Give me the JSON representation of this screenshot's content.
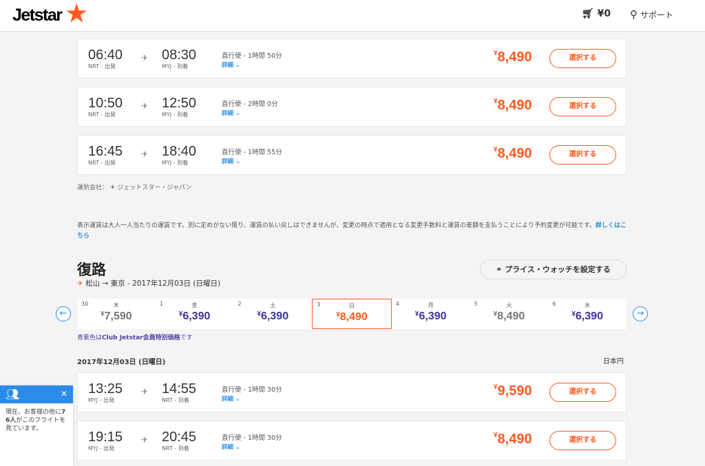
{
  "header": {
    "logo": "Jetstar",
    "cart_total": "¥0",
    "support": "サポート"
  },
  "outbound_flights": [
    {
      "dep": "06:40",
      "dep_ap": "NRT - 出発",
      "arr": "08:30",
      "arr_ap": "MYJ - 到着",
      "dur": "直行便 - 1時間 50分",
      "details": "詳細 ⌄",
      "price": "8,490",
      "select": "選択する"
    },
    {
      "dep": "10:50",
      "dep_ap": "NRT - 出発",
      "arr": "12:50",
      "arr_ap": "MYJ - 到着",
      "dur": "直行便 - 2時間 0分",
      "details": "詳細 ⌄",
      "price": "8,490",
      "select": "選択する"
    },
    {
      "dep": "16:45",
      "dep_ap": "NRT - 出発",
      "arr": "18:40",
      "arr_ap": "MYJ - 到着",
      "dur": "直行便 - 1時間 55分",
      "details": "詳細 ⌄",
      "price": "8,490",
      "select": "選択する"
    }
  ],
  "operator": "運航会社： ✈ ジェットスター・ジャパン",
  "fare_note": "表示運賃は大人一人当たりの運賃です。別に定めがない限り、運賃の払い戻しはできませんが、変更の時点で適用となる変更手数料と運賃の差額を支払うことにより予約変更が可能です。",
  "fare_note_link": "詳しくはこちら",
  "return": {
    "title": "復路",
    "route": "松山 → 東京 - 2017年12月03日 (日曜日)",
    "price_watch": "プライス・ウォッチを設定する"
  },
  "calendar": [
    {
      "day": "30",
      "wd": "木",
      "price": "7,590",
      "color": "#777777"
    },
    {
      "day": "1",
      "wd": "金",
      "price": "6,390",
      "color": "#3d3396"
    },
    {
      "day": "2",
      "wd": "土",
      "price": "6,390",
      "color": "#3d3396"
    },
    {
      "day": "3",
      "wd": "日",
      "price": "8,490",
      "color": "#ff5a1f",
      "active": true
    },
    {
      "day": "4",
      "wd": "月",
      "price": "6,390",
      "color": "#3d3396"
    },
    {
      "day": "5",
      "wd": "火",
      "price": "8,490",
      "color": "#777777"
    },
    {
      "day": "6",
      "wd": "水",
      "price": "6,390",
      "color": "#3d3396"
    }
  ],
  "club_note": {
    "a": "青紫色は",
    "b": "Club Jetstar会員特別価格",
    "c": "です"
  },
  "date_heading": "2017年12月03日 (日曜日)",
  "currency": "日本円",
  "return_flights": [
    {
      "dep": "13:25",
      "dep_ap": "MYJ - 出発",
      "arr": "14:55",
      "arr_ap": "NRT - 到着",
      "dur": "直行便 - 1時間 30分",
      "details": "詳細 ⌄",
      "price": "9,590",
      "select": "選択する"
    },
    {
      "dep": "19:15",
      "dep_ap": "MYJ - 出発",
      "arr": "20:45",
      "arr_ap": "NRT - 到着",
      "dur": "直行便 - 1時間 30分",
      "details": "詳細 ⌄",
      "price": "8,490",
      "select": "選択する"
    }
  ],
  "toast": {
    "a": "現在、お客様の他に",
    "b": "76人",
    "c": "がこのフライトを見ています。"
  }
}
